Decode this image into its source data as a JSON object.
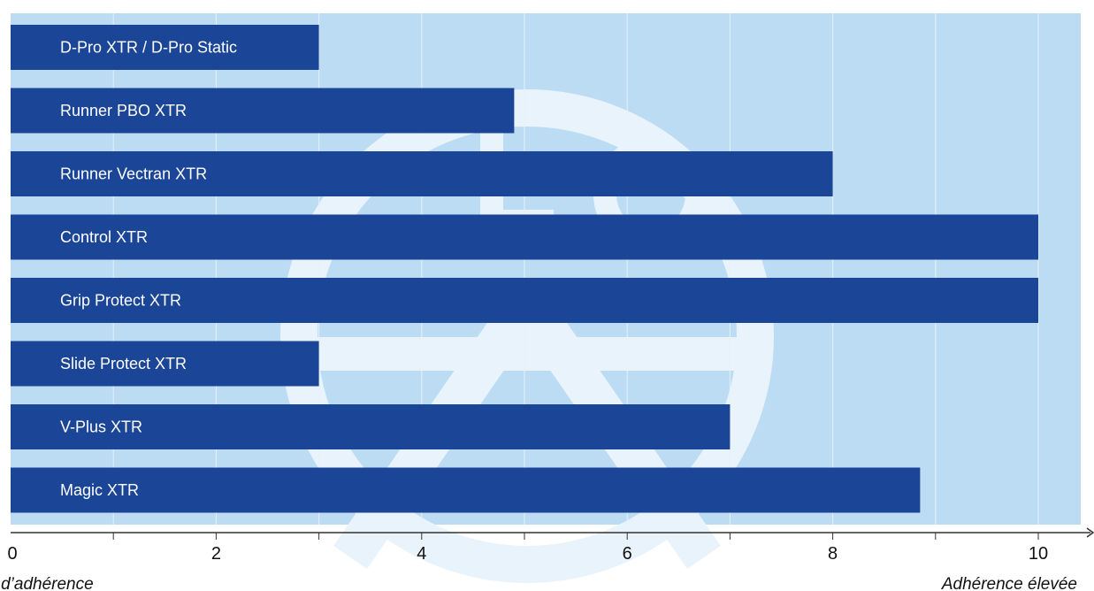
{
  "chart_data": {
    "type": "bar",
    "orientation": "horizontal",
    "categories": [
      "D-Pro XTR / D-Pro Static",
      "Runner PBO XTR",
      "Runner Vectran XTR",
      "Control XTR",
      "Grip Protect XTR",
      "Slide Protect XTR",
      "V-Plus XTR",
      "Magic XTR"
    ],
    "values": [
      3,
      4.9,
      8,
      10,
      10,
      3,
      7,
      8.85
    ],
    "xlim": [
      0,
      10.4
    ],
    "x_ticks": [
      0,
      2,
      4,
      6,
      8,
      10
    ],
    "x_minor_ticks": [
      1,
      3,
      5,
      7,
      9
    ],
    "x_caption_left": "Peu d’adhérence",
    "x_caption_right": "Adhérence élevée",
    "grid": true,
    "legend": "none",
    "colors": {
      "plot_background": "#bcdcf3",
      "bar": "#1b4596",
      "grid": "#e6f1fb",
      "watermark": "#e9f3fb",
      "axis": "#333333",
      "bar_text": "#ffffff"
    },
    "watermark_icon": "logo-watermark-icon"
  }
}
